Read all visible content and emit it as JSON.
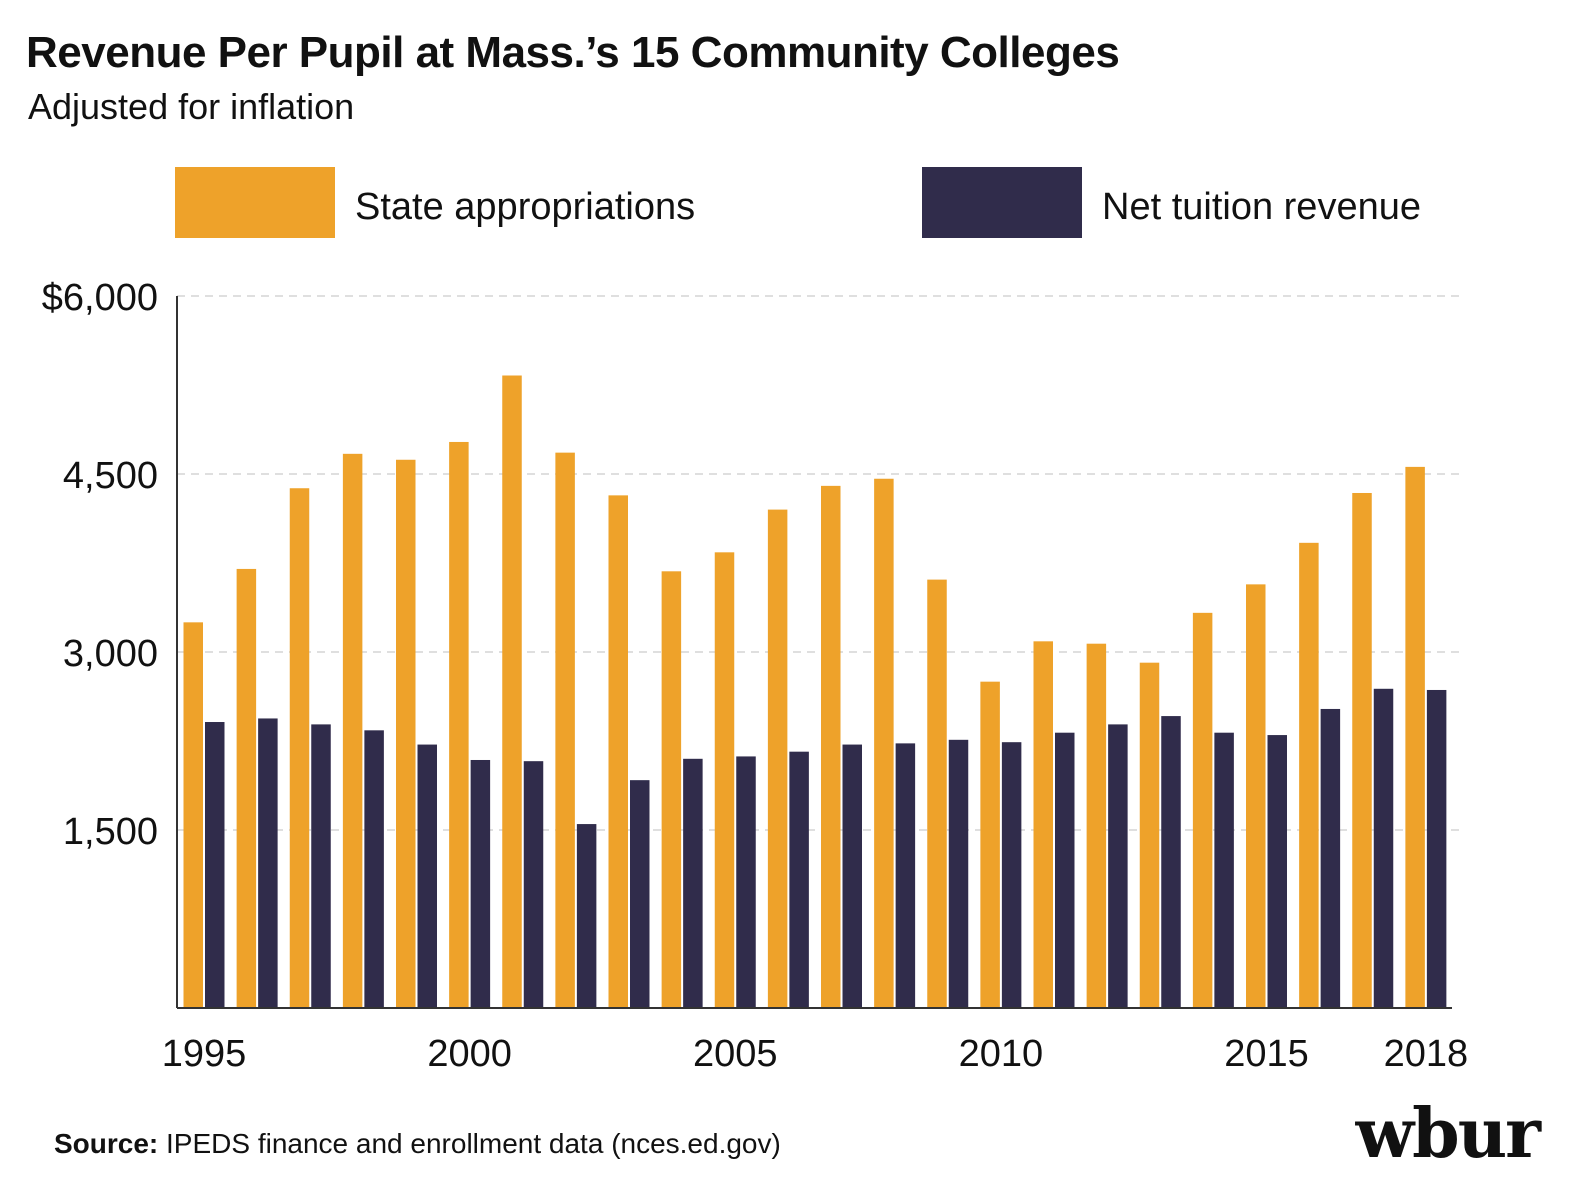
{
  "title": "Revenue Per Pupil at Mass.’s 15 Community Colleges",
  "subtitle": "Adjusted for inflation",
  "source": {
    "label": "Source:",
    "text": "IPEDS finance and enrollment data (nces.ed.gov)"
  },
  "logo": "wbur",
  "colors": {
    "state": "#EEA22A",
    "tuition": "#302C4B",
    "grid": "#CCCCCC",
    "axis": "#333333"
  },
  "chart_data": {
    "type": "bar",
    "title": "Revenue Per Pupil at Mass.’s 15 Community Colleges",
    "subtitle": "Adjusted for inflation",
    "categories": [
      "1995",
      "1996",
      "1997",
      "1998",
      "1999",
      "2000",
      "2001",
      "2002",
      "2003",
      "2004",
      "2005",
      "2006",
      "2007",
      "2008",
      "2009",
      "2010",
      "2011",
      "2012",
      "2013",
      "2014",
      "2015",
      "2016",
      "2017",
      "2018"
    ],
    "series": [
      {
        "name": "State appropriations",
        "values": [
          3250,
          3700,
          4380,
          4670,
          4620,
          4770,
          5330,
          4680,
          4320,
          3680,
          3840,
          4200,
          4400,
          4460,
          3610,
          2750,
          3090,
          3070,
          2910,
          3330,
          3570,
          3920,
          4340,
          4560
        ]
      },
      {
        "name": "Net tuition revenue",
        "values": [
          2410,
          2440,
          2390,
          2340,
          2220,
          2090,
          2080,
          1550,
          1920,
          2100,
          2120,
          2160,
          2220,
          2230,
          2260,
          2240,
          2320,
          2390,
          2460,
          2320,
          2300,
          2520,
          2690,
          2680
        ]
      }
    ],
    "tick_labels_x": [
      "1995",
      "2000",
      "2005",
      "2010",
      "2015",
      "2018"
    ],
    "tick_labels_y": [
      "$6,000",
      "4,500",
      "3,000",
      "1,500"
    ],
    "y_ticks": [
      6000,
      4500,
      3000,
      1500
    ],
    "ylim": [
      0,
      6000
    ],
    "grid": true,
    "legend": "top"
  }
}
